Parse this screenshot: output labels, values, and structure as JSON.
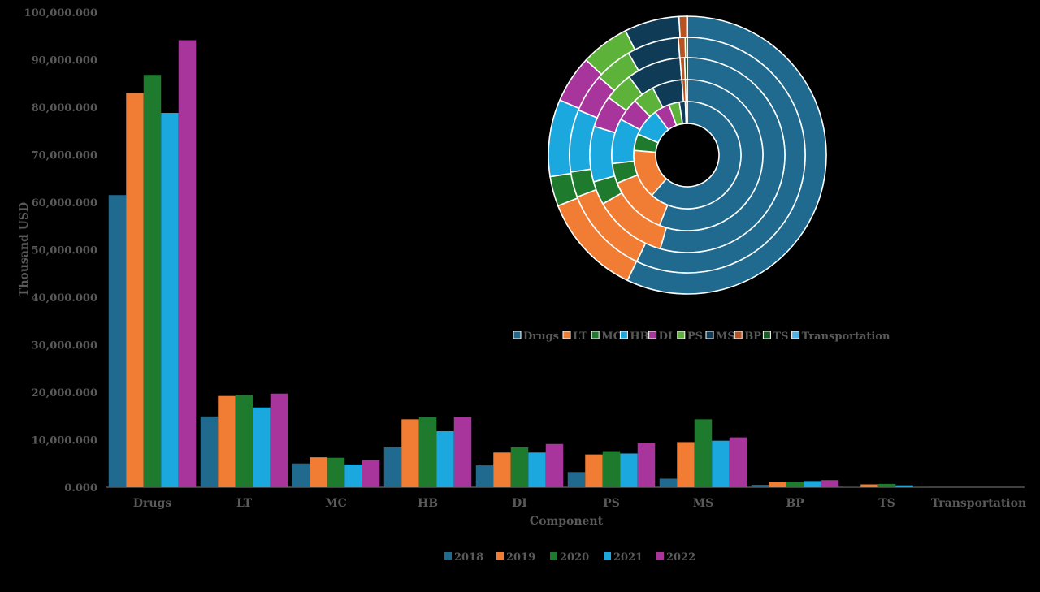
{
  "chart_data": {
    "type": "bar",
    "xlabel": "Component",
    "ylabel": "Thousand USD",
    "ylim": [
      0,
      100000000
    ],
    "yticks": [
      "0.000",
      "10,000.000",
      "20,000.000",
      "30,000.000",
      "40,000.000",
      "50,000.000",
      "60,000.000",
      "70,000.000",
      "80,000.000",
      "90,000.000",
      "100,000.000"
    ],
    "categories": [
      "Drugs",
      "LT",
      "MC",
      "HB",
      "DI",
      "PS",
      "MS",
      "BP",
      "TS",
      "Transportation"
    ],
    "series": [
      {
        "name": "2018",
        "color": "#1F6A8E",
        "values": [
          61500000,
          14900000,
          5000000,
          8400000,
          4600000,
          3200000,
          1800000,
          500000,
          100000,
          0
        ]
      },
      {
        "name": "2019",
        "color": "#F07D33",
        "values": [
          83000000,
          19200000,
          6300000,
          14300000,
          7300000,
          6900000,
          9500000,
          1100000,
          600000,
          0
        ]
      },
      {
        "name": "2020",
        "color": "#1E7A2C",
        "values": [
          86800000,
          19400000,
          6200000,
          14700000,
          8400000,
          7600000,
          14300000,
          1200000,
          700000,
          0
        ]
      },
      {
        "name": "2021",
        "color": "#1AA8DF",
        "values": [
          78800000,
          16800000,
          4800000,
          11800000,
          7300000,
          7100000,
          9800000,
          1300000,
          400000,
          0
        ]
      },
      {
        "name": "2022",
        "color": "#A8359C",
        "values": [
          94100000,
          19700000,
          5700000,
          14800000,
          9100000,
          9300000,
          10500000,
          1500000,
          100000,
          0
        ]
      }
    ],
    "legend_position": "bottom",
    "inset": {
      "type": "doughnut",
      "rings_outer_to_inner": [
        "2022",
        "2021",
        "2020",
        "2019",
        "2018"
      ],
      "legend_position": "bottom",
      "legend": [
        {
          "label": "Drugs",
          "color": "#1F6A8E"
        },
        {
          "label": "LT",
          "color": "#F07D33"
        },
        {
          "label": "MC",
          "color": "#1E7A2C"
        },
        {
          "label": "HB",
          "color": "#1AA8DF"
        },
        {
          "label": "DI",
          "color": "#A8359C"
        },
        {
          "label": "PS",
          "color": "#5DB33A"
        },
        {
          "label": "MS",
          "color": "#0F3B57"
        },
        {
          "label": "BP",
          "color": "#B9521E"
        },
        {
          "label": "TS",
          "color": "#1B5A26"
        },
        {
          "label": "Transportation",
          "color": "#4FB3E6"
        }
      ]
    }
  }
}
